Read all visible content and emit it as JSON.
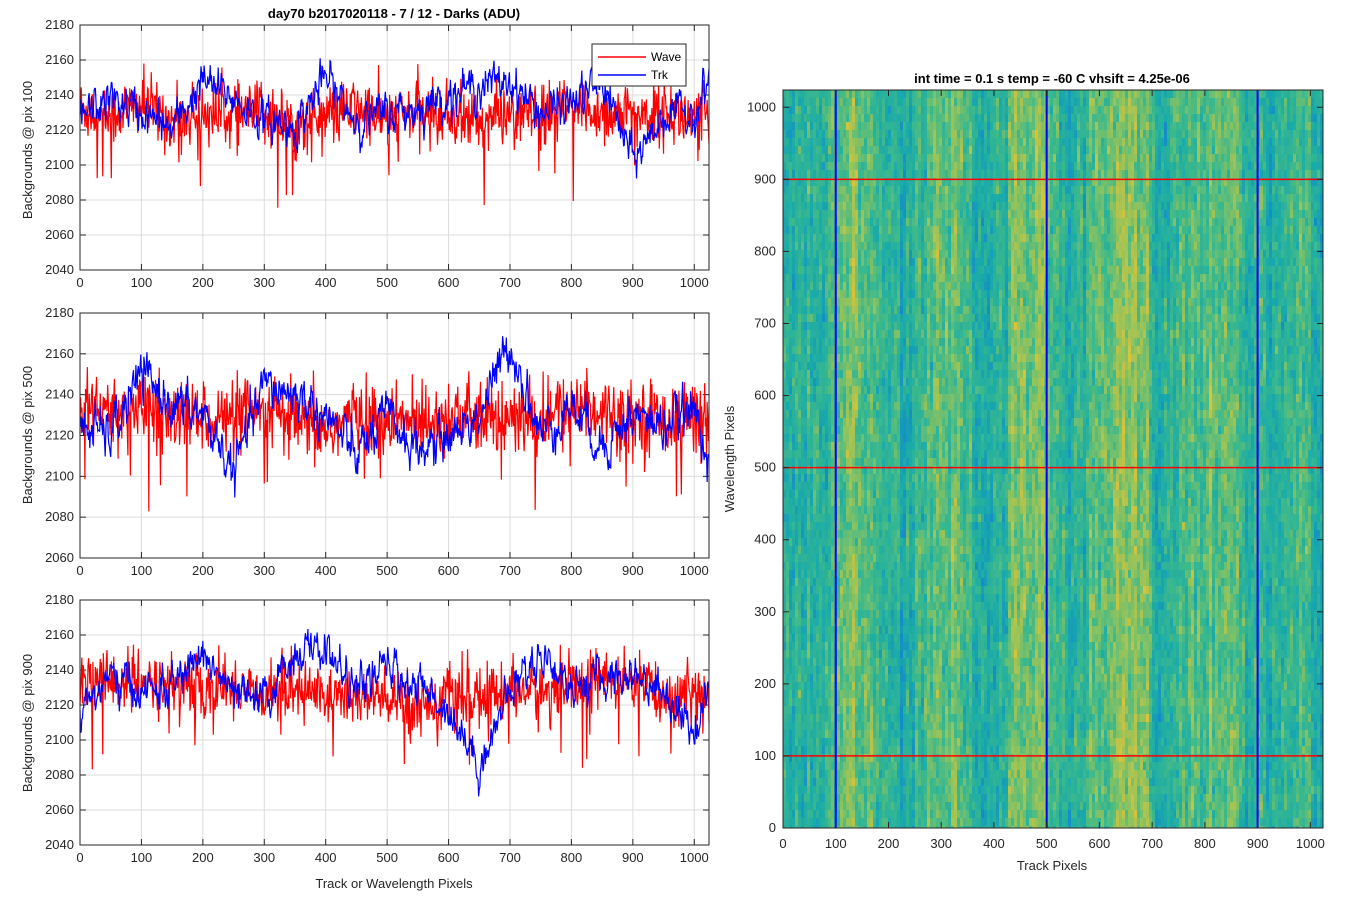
{
  "colors": {
    "wave": "#ff0000",
    "trk": "#0000ff",
    "grid": "#dcdcdc",
    "axes": "#262626"
  },
  "chart_data": [
    {
      "type": "line",
      "title": "day70 b2017020118 - 7 / 12 - Darks (ADU)",
      "xlabel": "",
      "ylabel": "Backgrounds @ pix 100",
      "xlim": [
        0,
        1024
      ],
      "ylim": [
        2040,
        2180
      ],
      "xticks": [
        0,
        100,
        200,
        300,
        400,
        500,
        600,
        700,
        800,
        900,
        1000
      ],
      "yticks": [
        2040,
        2060,
        2080,
        2100,
        2120,
        2140,
        2160,
        2180
      ],
      "grid": true,
      "legend": {
        "placement": "top-right",
        "entries": [
          "Wave",
          "Trk"
        ]
      },
      "series": [
        {
          "name": "Wave",
          "color": "#ff0000",
          "x": [
            0,
            50,
            100,
            150,
            200,
            250,
            300,
            350,
            400,
            450,
            500,
            550,
            600,
            650,
            700,
            750,
            800,
            850,
            900,
            950,
            1000,
            1024
          ],
          "values": [
            2132,
            2128,
            2135,
            2125,
            2130,
            2128,
            2130,
            2122,
            2128,
            2132,
            2126,
            2130,
            2128,
            2125,
            2130,
            2127,
            2133,
            2130,
            2128,
            2130,
            2126,
            2128
          ]
        },
        {
          "name": "Trk",
          "color": "#0000ff",
          "x": [
            0,
            50,
            100,
            150,
            200,
            250,
            300,
            350,
            400,
            450,
            500,
            550,
            600,
            650,
            700,
            750,
            800,
            850,
            900,
            950,
            1000,
            1024
          ],
          "values": [
            2128,
            2138,
            2130,
            2120,
            2148,
            2138,
            2125,
            2122,
            2150,
            2125,
            2130,
            2132,
            2140,
            2145,
            2148,
            2130,
            2135,
            2148,
            2102,
            2128,
            2130,
            2148
          ]
        }
      ]
    },
    {
      "type": "line",
      "title": "",
      "xlabel": "",
      "ylabel": "Backgrounds @ pix 500",
      "xlim": [
        0,
        1024
      ],
      "ylim": [
        2060,
        2180
      ],
      "xticks": [
        0,
        100,
        200,
        300,
        400,
        500,
        600,
        700,
        800,
        900,
        1000
      ],
      "yticks": [
        2060,
        2080,
        2100,
        2120,
        2140,
        2160,
        2180
      ],
      "grid": true,
      "series": [
        {
          "name": "Wave",
          "color": "#ff0000",
          "x": [
            0,
            50,
            100,
            150,
            200,
            250,
            300,
            350,
            400,
            450,
            500,
            550,
            600,
            650,
            700,
            750,
            800,
            850,
            900,
            950,
            1000,
            1024
          ],
          "values": [
            2135,
            2130,
            2132,
            2128,
            2130,
            2127,
            2132,
            2126,
            2122,
            2130,
            2125,
            2128,
            2130,
            2127,
            2128,
            2126,
            2135,
            2132,
            2130,
            2128,
            2130,
            2126
          ]
        },
        {
          "name": "Trk",
          "color": "#0000ff",
          "x": [
            0,
            50,
            100,
            150,
            200,
            250,
            300,
            350,
            400,
            450,
            500,
            550,
            600,
            650,
            700,
            750,
            800,
            850,
            900,
            950,
            1000,
            1024
          ],
          "values": [
            2125,
            2120,
            2150,
            2135,
            2130,
            2102,
            2145,
            2140,
            2130,
            2110,
            2130,
            2112,
            2120,
            2130,
            2165,
            2120,
            2135,
            2115,
            2130,
            2125,
            2132,
            2112
          ]
        }
      ]
    },
    {
      "type": "line",
      "title": "",
      "xlabel": "Track or Wavelength Pixels",
      "ylabel": "Backgrounds @ pix 900",
      "xlim": [
        0,
        1024
      ],
      "ylim": [
        2040,
        2180
      ],
      "xticks": [
        0,
        100,
        200,
        300,
        400,
        500,
        600,
        700,
        800,
        900,
        1000
      ],
      "yticks": [
        2040,
        2060,
        2080,
        2100,
        2120,
        2140,
        2160,
        2180
      ],
      "grid": true,
      "series": [
        {
          "name": "Wave",
          "color": "#ff0000",
          "x": [
            0,
            50,
            100,
            150,
            200,
            250,
            300,
            350,
            400,
            450,
            500,
            550,
            600,
            650,
            700,
            750,
            800,
            850,
            900,
            950,
            1000,
            1024
          ],
          "values": [
            2132,
            2135,
            2130,
            2132,
            2128,
            2130,
            2128,
            2130,
            2126,
            2125,
            2122,
            2120,
            2125,
            2122,
            2130,
            2126,
            2132,
            2135,
            2130,
            2126,
            2128,
            2126
          ]
        },
        {
          "name": "Trk",
          "color": "#0000ff",
          "x": [
            0,
            50,
            100,
            150,
            200,
            250,
            300,
            350,
            400,
            450,
            500,
            550,
            600,
            650,
            700,
            750,
            800,
            850,
            900,
            950,
            1000,
            1024
          ],
          "values": [
            2118,
            2135,
            2128,
            2130,
            2150,
            2125,
            2122,
            2150,
            2152,
            2128,
            2142,
            2130,
            2118,
            2085,
            2128,
            2150,
            2130,
            2135,
            2138,
            2128,
            2105,
            2128
          ]
        }
      ]
    },
    {
      "type": "heatmap",
      "title": "int time = 0.1 s   temp = -60 C   vhsift = 4.25e-06",
      "xlabel": "Track Pixels",
      "ylabel": "Wavelength Pixels",
      "xlim": [
        0,
        1024
      ],
      "ylim": [
        0,
        1024
      ],
      "xticks": [
        0,
        100,
        200,
        300,
        400,
        500,
        600,
        700,
        800,
        900,
        1000
      ],
      "yticks": [
        0,
        100,
        200,
        300,
        400,
        500,
        600,
        700,
        800,
        900,
        1000
      ],
      "grid": false,
      "colormap": "parula",
      "warm_columns": [
        150,
        300,
        470,
        640,
        830
      ],
      "marker_columns": {
        "color": "#0000ff",
        "x": [
          100,
          500,
          900
        ]
      },
      "marker_rows": {
        "color": "#ff0000",
        "y": [
          100,
          500,
          900
        ]
      }
    }
  ]
}
